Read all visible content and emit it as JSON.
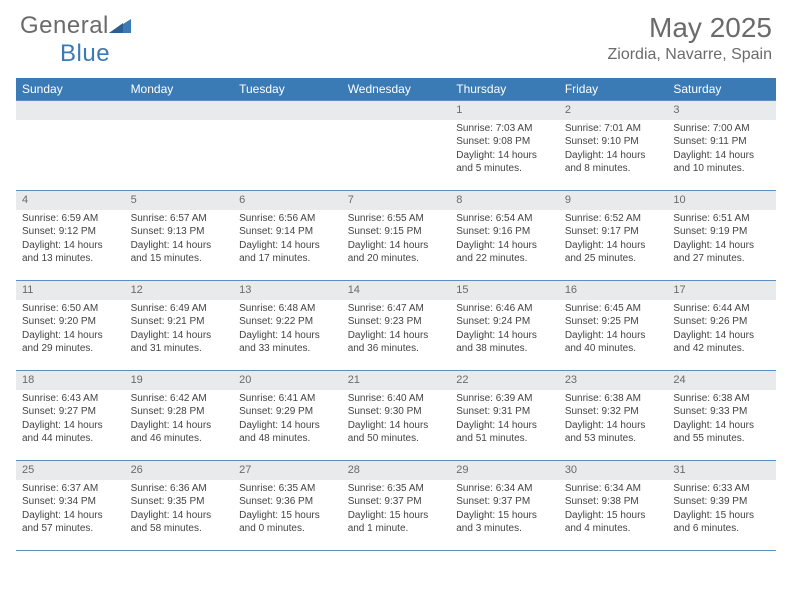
{
  "brand": {
    "name_gray": "General",
    "name_blue": "Blue"
  },
  "title": "May 2025",
  "location": "Ziordia, Navarre, Spain",
  "colors": {
    "header_bg": "#3a7ab5",
    "header_text": "#ffffff",
    "daynum_bg": "#e9eaeb",
    "cell_border": "#5a8fbf",
    "body_text": "#444444",
    "title_text": "#6b6b6b"
  },
  "fonts": {
    "title_size": 28,
    "location_size": 16,
    "th_size": 12,
    "cell_size": 10,
    "daynum_size": 11
  },
  "day_headers": [
    "Sunday",
    "Monday",
    "Tuesday",
    "Wednesday",
    "Thursday",
    "Friday",
    "Saturday"
  ],
  "weeks": [
    [
      null,
      null,
      null,
      null,
      {
        "n": "1",
        "sr": "7:03 AM",
        "ss": "9:08 PM",
        "dl": "14 hours and 5 minutes."
      },
      {
        "n": "2",
        "sr": "7:01 AM",
        "ss": "9:10 PM",
        "dl": "14 hours and 8 minutes."
      },
      {
        "n": "3",
        "sr": "7:00 AM",
        "ss": "9:11 PM",
        "dl": "14 hours and 10 minutes."
      }
    ],
    [
      {
        "n": "4",
        "sr": "6:59 AM",
        "ss": "9:12 PM",
        "dl": "14 hours and 13 minutes."
      },
      {
        "n": "5",
        "sr": "6:57 AM",
        "ss": "9:13 PM",
        "dl": "14 hours and 15 minutes."
      },
      {
        "n": "6",
        "sr": "6:56 AM",
        "ss": "9:14 PM",
        "dl": "14 hours and 17 minutes."
      },
      {
        "n": "7",
        "sr": "6:55 AM",
        "ss": "9:15 PM",
        "dl": "14 hours and 20 minutes."
      },
      {
        "n": "8",
        "sr": "6:54 AM",
        "ss": "9:16 PM",
        "dl": "14 hours and 22 minutes."
      },
      {
        "n": "9",
        "sr": "6:52 AM",
        "ss": "9:17 PM",
        "dl": "14 hours and 25 minutes."
      },
      {
        "n": "10",
        "sr": "6:51 AM",
        "ss": "9:19 PM",
        "dl": "14 hours and 27 minutes."
      }
    ],
    [
      {
        "n": "11",
        "sr": "6:50 AM",
        "ss": "9:20 PM",
        "dl": "14 hours and 29 minutes."
      },
      {
        "n": "12",
        "sr": "6:49 AM",
        "ss": "9:21 PM",
        "dl": "14 hours and 31 minutes."
      },
      {
        "n": "13",
        "sr": "6:48 AM",
        "ss": "9:22 PM",
        "dl": "14 hours and 33 minutes."
      },
      {
        "n": "14",
        "sr": "6:47 AM",
        "ss": "9:23 PM",
        "dl": "14 hours and 36 minutes."
      },
      {
        "n": "15",
        "sr": "6:46 AM",
        "ss": "9:24 PM",
        "dl": "14 hours and 38 minutes."
      },
      {
        "n": "16",
        "sr": "6:45 AM",
        "ss": "9:25 PM",
        "dl": "14 hours and 40 minutes."
      },
      {
        "n": "17",
        "sr": "6:44 AM",
        "ss": "9:26 PM",
        "dl": "14 hours and 42 minutes."
      }
    ],
    [
      {
        "n": "18",
        "sr": "6:43 AM",
        "ss": "9:27 PM",
        "dl": "14 hours and 44 minutes."
      },
      {
        "n": "19",
        "sr": "6:42 AM",
        "ss": "9:28 PM",
        "dl": "14 hours and 46 minutes."
      },
      {
        "n": "20",
        "sr": "6:41 AM",
        "ss": "9:29 PM",
        "dl": "14 hours and 48 minutes."
      },
      {
        "n": "21",
        "sr": "6:40 AM",
        "ss": "9:30 PM",
        "dl": "14 hours and 50 minutes."
      },
      {
        "n": "22",
        "sr": "6:39 AM",
        "ss": "9:31 PM",
        "dl": "14 hours and 51 minutes."
      },
      {
        "n": "23",
        "sr": "6:38 AM",
        "ss": "9:32 PM",
        "dl": "14 hours and 53 minutes."
      },
      {
        "n": "24",
        "sr": "6:38 AM",
        "ss": "9:33 PM",
        "dl": "14 hours and 55 minutes."
      }
    ],
    [
      {
        "n": "25",
        "sr": "6:37 AM",
        "ss": "9:34 PM",
        "dl": "14 hours and 57 minutes."
      },
      {
        "n": "26",
        "sr": "6:36 AM",
        "ss": "9:35 PM",
        "dl": "14 hours and 58 minutes."
      },
      {
        "n": "27",
        "sr": "6:35 AM",
        "ss": "9:36 PM",
        "dl": "15 hours and 0 minutes."
      },
      {
        "n": "28",
        "sr": "6:35 AM",
        "ss": "9:37 PM",
        "dl": "15 hours and 1 minute."
      },
      {
        "n": "29",
        "sr": "6:34 AM",
        "ss": "9:37 PM",
        "dl": "15 hours and 3 minutes."
      },
      {
        "n": "30",
        "sr": "6:34 AM",
        "ss": "9:38 PM",
        "dl": "15 hours and 4 minutes."
      },
      {
        "n": "31",
        "sr": "6:33 AM",
        "ss": "9:39 PM",
        "dl": "15 hours and 6 minutes."
      }
    ]
  ],
  "labels": {
    "sunrise": "Sunrise:",
    "sunset": "Sunset:",
    "daylight": "Daylight:"
  }
}
